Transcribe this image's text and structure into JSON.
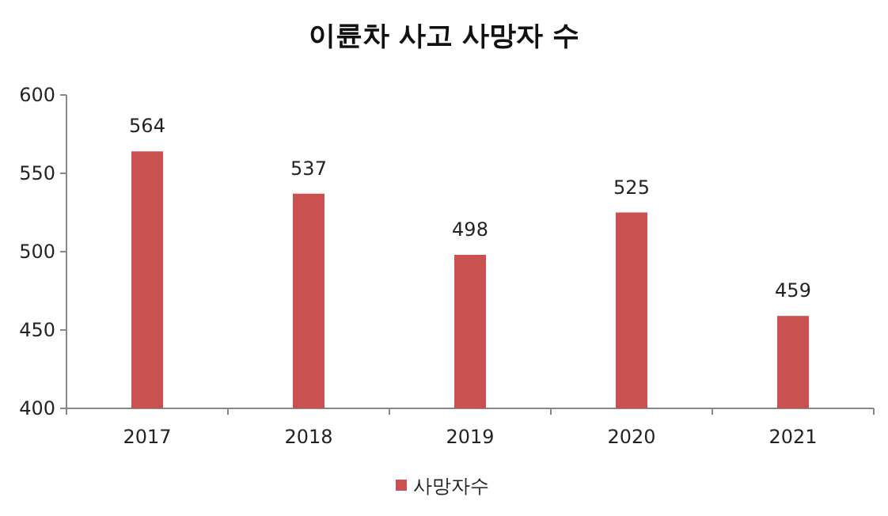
{
  "chart_data": {
    "type": "bar",
    "title": "이륜차 사고 사망자 수",
    "categories": [
      "2017",
      "2018",
      "2019",
      "2020",
      "2021"
    ],
    "series": [
      {
        "name": "사망자수",
        "color": "#c9514f",
        "values": [
          564,
          537,
          498,
          525,
          459
        ]
      }
    ],
    "ylim": [
      400,
      600
    ],
    "yticks": [
      400,
      450,
      500,
      550,
      600
    ],
    "data_labels": true,
    "legend": "bottom",
    "grid": false
  }
}
